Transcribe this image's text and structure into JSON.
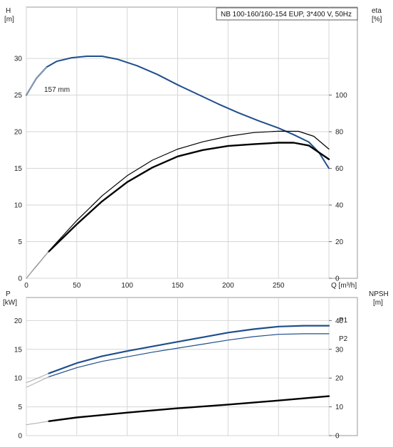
{
  "chart_data": [
    {
      "type": "line",
      "title": "NB 100-160/160-154 EUP, 3*400 V, 50Hz",
      "xlabel": "Q [m³/h]",
      "x_ticks": [
        "0",
        "50",
        "100",
        "150",
        "200",
        "250"
      ],
      "xlim": [
        0,
        300
      ],
      "left_axis": {
        "label_top": "H",
        "label_unit": "[m]",
        "ticks": [
          "0",
          "5",
          "10",
          "15",
          "20",
          "25",
          "30"
        ],
        "lim": [
          0,
          37
        ]
      },
      "right_axis": {
        "label_top": "eta",
        "label_unit": "[%]",
        "ticks": [
          "0",
          "20",
          "40",
          "60",
          "80",
          "100"
        ],
        "lim": [
          0,
          148
        ]
      },
      "annotations": [
        {
          "text": "157 mm"
        }
      ],
      "grid": true,
      "series": [
        {
          "key": "h_curve",
          "axis": "left",
          "color": "#1f4e8c",
          "width": 2,
          "points": [
            [
              0,
              25
            ],
            [
              10,
              27.3
            ],
            [
              20,
              28.8
            ],
            [
              30,
              29.6
            ],
            [
              45,
              30.1
            ],
            [
              60,
              30.3
            ],
            [
              75,
              30.3
            ],
            [
              90,
              29.9
            ],
            [
              110,
              29.0
            ],
            [
              130,
              27.8
            ],
            [
              150,
              26.4
            ],
            [
              170,
              25.1
            ],
            [
              190,
              23.8
            ],
            [
              210,
              22.6
            ],
            [
              230,
              21.5
            ],
            [
              250,
              20.5
            ],
            [
              265,
              19.6
            ],
            [
              280,
              18.6
            ],
            [
              290,
              17.2
            ],
            [
              300,
              15.0
            ]
          ]
        },
        {
          "key": "h_ext",
          "axis": "left",
          "color": "#bbbbbb",
          "width": 1,
          "points": [
            [
              0,
              25
            ],
            [
              10,
              27.3
            ],
            [
              20,
              28.8
            ]
          ]
        },
        {
          "key": "eta_thin",
          "axis": "right",
          "color": "#000000",
          "width": 1.2,
          "points": [
            [
              0,
              0
            ],
            [
              25,
              16.5
            ],
            [
              50,
              31.5
            ],
            [
              75,
              45
            ],
            [
              100,
              56
            ],
            [
              125,
              64.5
            ],
            [
              150,
              70.5
            ],
            [
              175,
              74.5
            ],
            [
              200,
              77.5
            ],
            [
              225,
              79.5
            ],
            [
              250,
              80.3
            ],
            [
              270,
              80.2
            ],
            [
              285,
              77.5
            ],
            [
              300,
              70.5
            ]
          ]
        },
        {
          "key": "eta_thick",
          "axis": "right",
          "color": "#000000",
          "width": 2.4,
          "points": [
            [
              22,
              14.5
            ],
            [
              50,
              29.5
            ],
            [
              75,
              42
            ],
            [
              100,
              52.5
            ],
            [
              125,
              60.5
            ],
            [
              150,
              66.5
            ],
            [
              175,
              70
            ],
            [
              200,
              72.2
            ],
            [
              225,
              73.2
            ],
            [
              250,
              74
            ],
            [
              265,
              74
            ],
            [
              280,
              72.5
            ],
            [
              300,
              65
            ]
          ]
        },
        {
          "key": "eta_ext",
          "axis": "right",
          "color": "#bbbbbb",
          "width": 1,
          "points": [
            [
              0,
              0
            ],
            [
              10,
              6.5
            ],
            [
              22,
              14.5
            ]
          ]
        }
      ]
    },
    {
      "type": "line",
      "x_ticks": [
        "0",
        "50",
        "100",
        "150",
        "200",
        "250"
      ],
      "xlim": [
        0,
        300
      ],
      "left_axis": {
        "label_top": "P",
        "label_unit": "[kW]",
        "ticks": [
          "0",
          "5",
          "10",
          "15",
          "20"
        ],
        "lim": [
          0,
          24
        ]
      },
      "right_axis": {
        "label_top": "NPSH",
        "label_unit": "[m]",
        "ticks": [
          "0",
          "10",
          "20",
          "30",
          "40"
        ],
        "lim": [
          0,
          48
        ]
      },
      "grid": true,
      "legend": [
        {
          "name": "P1",
          "color": "#1f4e8c"
        },
        {
          "name": "P2",
          "color": "#1f4e8c"
        }
      ],
      "series": [
        {
          "key": "p1",
          "name": "P1",
          "axis": "left",
          "color": "#1f4e8c",
          "width": 2.2,
          "points": [
            [
              22,
              10.8
            ],
            [
              50,
              12.6
            ],
            [
              75,
              13.8
            ],
            [
              100,
              14.7
            ],
            [
              125,
              15.5
            ],
            [
              150,
              16.3
            ],
            [
              175,
              17.1
            ],
            [
              200,
              17.9
            ],
            [
              225,
              18.5
            ],
            [
              250,
              18.95
            ],
            [
              275,
              19.1
            ],
            [
              300,
              19.1
            ]
          ]
        },
        {
          "key": "p1_ext",
          "axis": "left",
          "color": "#aaaaaa",
          "width": 1,
          "points": [
            [
              0,
              9.2
            ],
            [
              10,
              9.9
            ],
            [
              22,
              10.8
            ]
          ]
        },
        {
          "key": "p2",
          "name": "P2",
          "axis": "left",
          "color": "#1f4e8c",
          "width": 1.2,
          "points": [
            [
              22,
              10.2
            ],
            [
              50,
              11.8
            ],
            [
              75,
              12.9
            ],
            [
              100,
              13.7
            ],
            [
              125,
              14.5
            ],
            [
              150,
              15.2
            ],
            [
              175,
              15.9
            ],
            [
              200,
              16.6
            ],
            [
              225,
              17.2
            ],
            [
              250,
              17.6
            ],
            [
              275,
              17.7
            ],
            [
              300,
              17.7
            ]
          ]
        },
        {
          "key": "p2_ext",
          "axis": "left",
          "color": "#aaaaaa",
          "width": 1,
          "points": [
            [
              0,
              8.4
            ],
            [
              10,
              9.2
            ],
            [
              22,
              10.2
            ]
          ]
        },
        {
          "key": "npsh",
          "axis": "right",
          "color": "#000000",
          "width": 2.4,
          "points": [
            [
              22,
              5
            ],
            [
              50,
              6.3
            ],
            [
              100,
              8
            ],
            [
              150,
              9.5
            ],
            [
              200,
              10.8
            ],
            [
              250,
              12.2
            ],
            [
              300,
              13.7
            ]
          ]
        },
        {
          "key": "npsh_ext",
          "axis": "right",
          "color": "#aaaaaa",
          "width": 1,
          "points": [
            [
              0,
              3.8
            ],
            [
              10,
              4.3
            ],
            [
              22,
              5
            ]
          ]
        }
      ]
    }
  ]
}
